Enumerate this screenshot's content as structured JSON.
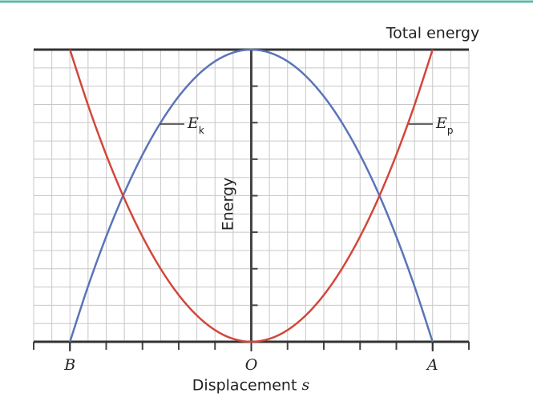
{
  "chart_data": {
    "type": "line",
    "annotation_top": "Total energy",
    "xlabel": "Displacement s",
    "ylabel": "Energy",
    "x": [
      -1,
      -0.9,
      -0.8,
      -0.7,
      -0.6,
      -0.5,
      -0.4,
      -0.3,
      -0.2,
      -0.1,
      0,
      0.1,
      0.2,
      0.3,
      0.4,
      0.5,
      0.6,
      0.7,
      0.8,
      0.9,
      1
    ],
    "series": [
      {
        "name": "Ek",
        "color": "#5b74b8",
        "values": [
          0,
          0.19,
          0.36,
          0.51,
          0.64,
          0.75,
          0.84,
          0.91,
          0.96,
          0.99,
          1,
          0.99,
          0.96,
          0.91,
          0.84,
          0.75,
          0.64,
          0.51,
          0.36,
          0.19,
          0
        ]
      },
      {
        "name": "Ep",
        "color": "#d2473b",
        "values": [
          1,
          0.81,
          0.64,
          0.49,
          0.36,
          0.25,
          0.16,
          0.09,
          0.04,
          0.01,
          0,
          0.01,
          0.04,
          0.09,
          0.16,
          0.25,
          0.36,
          0.49,
          0.64,
          0.81,
          1
        ]
      }
    ],
    "xlim": [
      -1.2,
      1.2
    ],
    "ylim": [
      0,
      1
    ],
    "xticks": [
      {
        "value": -1,
        "label": "B"
      },
      {
        "value": 0,
        "label": "O"
      },
      {
        "value": 1,
        "label": "A"
      }
    ],
    "grid": true
  }
}
